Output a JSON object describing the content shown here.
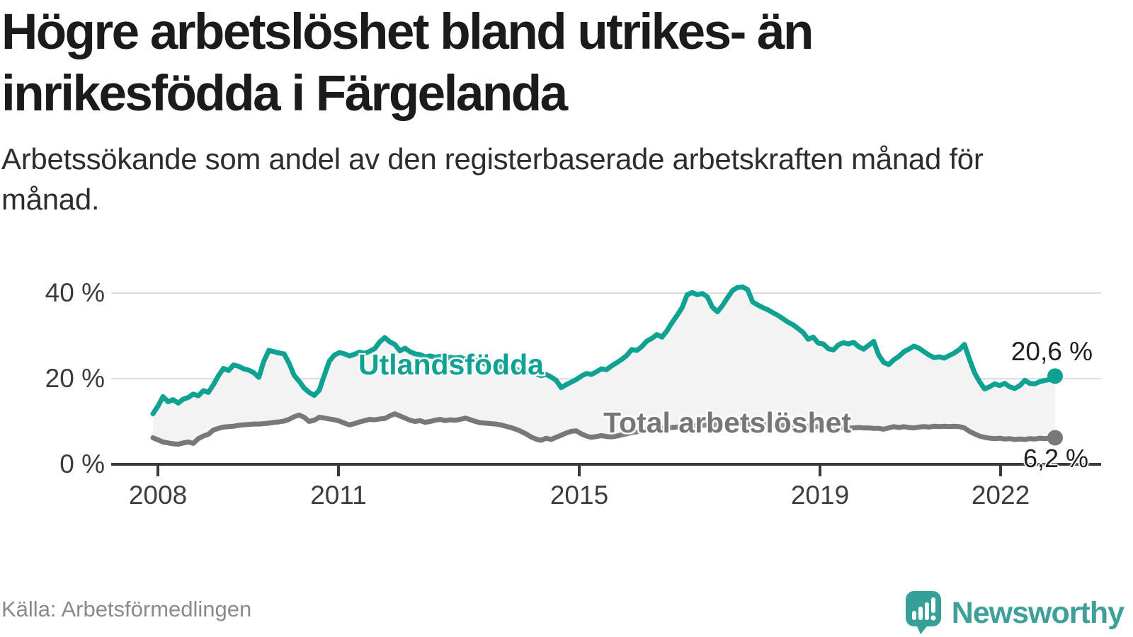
{
  "title": "Högre arbetslöshet bland utrikes- än inrikesfödda i Färgelanda",
  "subtitle": "Arbetssökande som andel av den registerbaserade arbetskraften månad för månad.",
  "source": "Källa: Arbetsförmedlingen",
  "logo": {
    "text": "Newsworthy",
    "icon": "speech-bubble-bar-chart-exclamation-icon",
    "color": "#3FA09A"
  },
  "colors": {
    "foreign_born_line": "#0FA293",
    "total_line": "#787878",
    "band_fill": "#f3f3f3",
    "gridline": "#dcdcdc",
    "axis": "#3a3a3a",
    "annotation_text": "#1f1f1f",
    "title_text": "#1b1b1b"
  },
  "chart_data": {
    "type": "line",
    "title": "Högre arbetslöshet bland utrikes- än inrikesfödda i Färgelanda",
    "subtitle": "Arbetssökande som andel av den registerbaserade arbetskraften månad för månad.",
    "unit": "%",
    "x_start": "2008-01",
    "x_end": "2022-12",
    "x_step": "month",
    "grid": true,
    "legend": "inline-labels",
    "ylim": [
      0,
      45
    ],
    "yticks": [
      {
        "label": "0 %",
        "value": 0
      },
      {
        "label": "20 %",
        "value": 20
      },
      {
        "label": "40 %",
        "value": 40
      }
    ],
    "xticks": [
      {
        "label": "2008",
        "year": 2008
      },
      {
        "label": "2011",
        "year": 2011
      },
      {
        "label": "2015",
        "year": 2015
      },
      {
        "label": "2019",
        "year": 2019
      },
      {
        "label": "2022",
        "year": 2022
      }
    ],
    "series": [
      {
        "name": "Utlandsfödda",
        "color": "#0FA293",
        "end_label": "20,6 %",
        "end_value": 20.6,
        "values": [
          11.8,
          13.6,
          15.8,
          14.6,
          15.1,
          14.3,
          15.2,
          15.6,
          16.4,
          16.0,
          17.2,
          16.8,
          18.6,
          20.7,
          22.4,
          21.9,
          23.2,
          22.9,
          22.3,
          22.0,
          21.4,
          20.3,
          24.1,
          26.6,
          26.3,
          26.0,
          25.8,
          23.6,
          20.8,
          19.4,
          17.8,
          16.8,
          16.1,
          17.3,
          20.8,
          24.1,
          25.5,
          26.1,
          25.8,
          25.3,
          25.7,
          26.2,
          25.9,
          26.4,
          27.0,
          28.6,
          29.6,
          28.6,
          28.0,
          26.5,
          27.1,
          26.3,
          25.8,
          25.6,
          25.1,
          25.3,
          25.0,
          25.2,
          24.8,
          25.0,
          24.8,
          25.0,
          24.5,
          24.1,
          24.3,
          23.8,
          23.4,
          23.0,
          23.2,
          22.8,
          22.4,
          22.6,
          22.2,
          21.8,
          21.4,
          21.6,
          21.1,
          20.7,
          21.0,
          20.4,
          19.6,
          17.9,
          18.6,
          19.2,
          19.8,
          20.6,
          21.2,
          21.0,
          21.6,
          22.3,
          22.1,
          23.0,
          23.7,
          24.5,
          25.4,
          26.8,
          26.6,
          27.5,
          28.8,
          29.4,
          30.3,
          29.7,
          31.2,
          33.1,
          34.8,
          36.6,
          39.6,
          40.1,
          39.6,
          39.9,
          39.1,
          36.7,
          35.6,
          37.1,
          38.9,
          40.6,
          41.3,
          41.4,
          40.8,
          37.9,
          37.2,
          36.6,
          36.1,
          35.4,
          34.8,
          34.0,
          33.2,
          32.6,
          31.7,
          30.8,
          29.2,
          29.7,
          28.3,
          28.1,
          27.0,
          26.7,
          27.9,
          28.4,
          28.1,
          28.5,
          27.5,
          26.9,
          27.8,
          28.7,
          25.5,
          23.8,
          23.3,
          24.4,
          25.2,
          26.3,
          26.9,
          27.6,
          27.1,
          26.3,
          25.5,
          24.9,
          25.1,
          24.8,
          25.4,
          26.0,
          26.8,
          28.0,
          24.6,
          21.4,
          19.3,
          17.6,
          18.1,
          18.8,
          18.4,
          18.9,
          18.1,
          17.7,
          18.4,
          19.6,
          18.9,
          18.8,
          19.3,
          19.6,
          19.8,
          20.6
        ]
      },
      {
        "name": "Total arbetslöshet",
        "color": "#787878",
        "end_label": "6,2 %",
        "end_value": 6.2,
        "values": [
          6.2,
          5.7,
          5.2,
          5.0,
          4.8,
          4.7,
          5.0,
          5.2,
          4.9,
          6.0,
          6.6,
          7.0,
          8.0,
          8.4,
          8.7,
          8.8,
          8.9,
          9.1,
          9.2,
          9.3,
          9.4,
          9.4,
          9.5,
          9.6,
          9.8,
          9.9,
          10.1,
          10.5,
          11.1,
          11.5,
          11.0,
          10.0,
          10.3,
          11.0,
          10.8,
          10.6,
          10.4,
          10.1,
          9.6,
          9.2,
          9.5,
          9.9,
          10.2,
          10.5,
          10.4,
          10.6,
          10.7,
          11.3,
          11.8,
          11.3,
          10.8,
          10.3,
          10.0,
          10.2,
          9.8,
          10.0,
          10.3,
          10.5,
          10.2,
          10.4,
          10.3,
          10.5,
          10.8,
          10.4,
          10.0,
          9.7,
          9.6,
          9.5,
          9.4,
          9.2,
          8.9,
          8.6,
          8.2,
          7.7,
          7.1,
          6.4,
          5.9,
          5.6,
          6.1,
          5.8,
          6.3,
          6.8,
          7.3,
          7.7,
          7.8,
          7.1,
          6.6,
          6.3,
          6.5,
          6.7,
          6.5,
          6.4,
          6.6,
          6.9,
          7.1,
          7.4,
          7.6,
          7.8,
          8.0,
          8.1,
          8.2,
          8.4,
          8.5,
          8.6,
          8.7,
          8.8,
          8.9,
          9.0,
          9.1,
          9.1,
          9.2,
          9.2,
          9.3,
          9.3,
          9.4,
          9.4,
          9.5,
          9.5,
          9.4,
          9.4,
          9.4,
          9.3,
          9.3,
          9.2,
          9.2,
          9.1,
          9.1,
          9.0,
          9.0,
          8.9,
          8.9,
          8.8,
          8.8,
          8.7,
          8.7,
          8.6,
          8.6,
          8.6,
          8.5,
          8.5,
          8.6,
          8.5,
          8.5,
          8.4,
          8.4,
          8.2,
          8.5,
          8.8,
          8.6,
          8.8,
          8.6,
          8.5,
          8.7,
          8.8,
          8.7,
          8.9,
          8.8,
          8.9,
          8.8,
          8.9,
          8.8,
          8.5,
          7.7,
          7.1,
          6.6,
          6.3,
          6.1,
          6.0,
          6.1,
          5.9,
          6.0,
          5.8,
          5.9,
          5.8,
          6.0,
          5.9,
          6.1,
          6.0,
          6.1,
          6.2
        ]
      }
    ]
  }
}
